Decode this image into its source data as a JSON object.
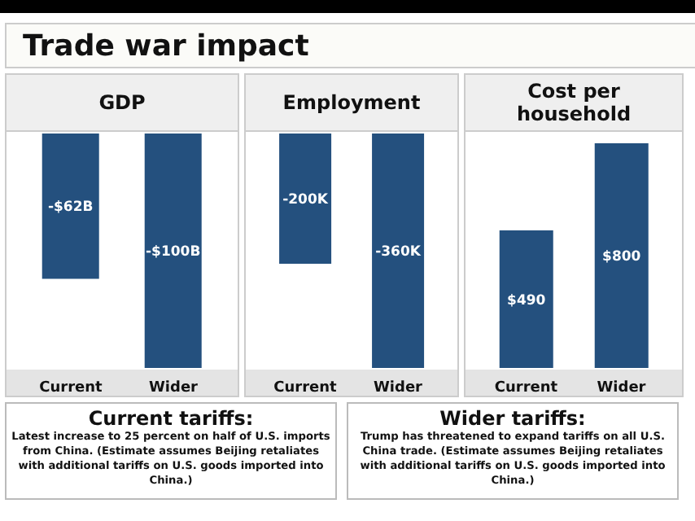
{
  "chart_data": [
    {
      "type": "other",
      "title": "Trade war impact"
    },
    {
      "type": "bar",
      "title": "GDP",
      "categories": [
        "Current",
        "Wider"
      ],
      "values": [
        -62,
        -100
      ],
      "value_labels": [
        "-$62B",
        "-$100B"
      ],
      "color": "#24507e"
    },
    {
      "type": "bar",
      "title": "Employment",
      "categories": [
        "Current",
        "Wider"
      ],
      "values": [
        -200,
        -360
      ],
      "value_labels": [
        "-200K",
        "-360K"
      ],
      "color": "#24507e"
    },
    {
      "type": "bar",
      "title": "Cost per household",
      "categories": [
        "Current",
        "Wider"
      ],
      "values": [
        490,
        800
      ],
      "value_labels": [
        "$490",
        "$800"
      ],
      "color": "#24507e"
    },
    {
      "type": "other",
      "title": "Current tariffs:",
      "annotations": [
        "Latest increase to 25 percent on half of U.S. imports from China. (Estimate assumes Beijing retaliates with additional tariffs on U.S. goods imported into China.)"
      ]
    },
    {
      "type": "other",
      "title": "Wider tariffs:",
      "annotations": [
        "Trump has threatened to expand tariffs on all U.S. China trade. (Estimate assumes Beijing retaliates with additional tariffs on U.S. goods imported into China.)"
      ]
    }
  ]
}
